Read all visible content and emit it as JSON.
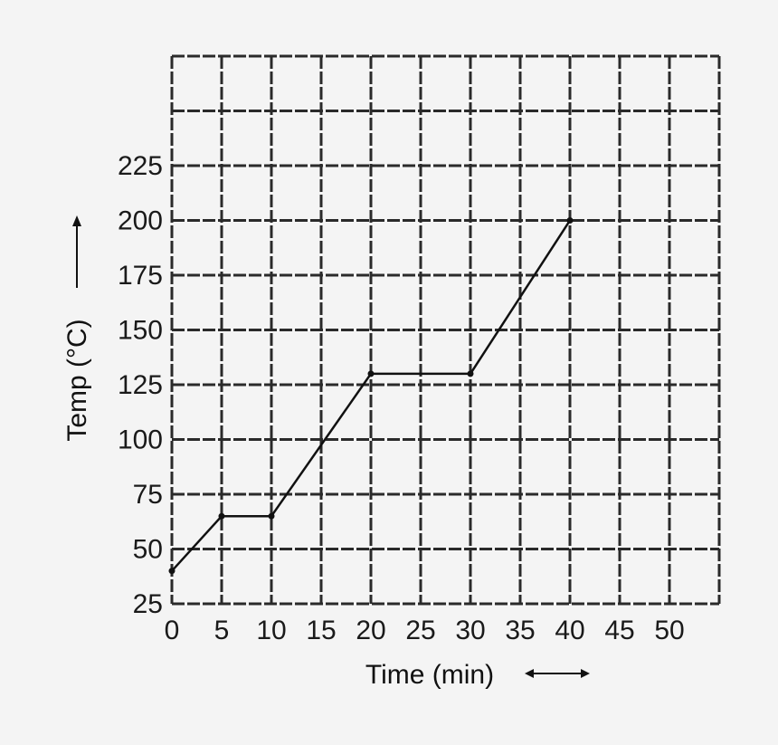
{
  "chart_data": {
    "type": "line",
    "title": "",
    "xlabel": "Time (min)",
    "ylabel": "Temp (°C)",
    "x_tick_labels": [
      "0",
      "5",
      "10",
      "15",
      "20",
      "25",
      "30",
      "35",
      "40",
      "45",
      "50"
    ],
    "y_tick_labels": [
      "25",
      "50",
      "75",
      "100",
      "125",
      "150",
      "175",
      "200",
      "225"
    ],
    "xlim": [
      0,
      55
    ],
    "ylim": [
      25,
      275
    ],
    "grid": true,
    "legend": "none",
    "series": [
      {
        "x": [
          0,
          5,
          10,
          20,
          30,
          40
        ],
        "y": [
          40,
          65,
          65,
          130,
          130,
          200
        ]
      }
    ]
  }
}
